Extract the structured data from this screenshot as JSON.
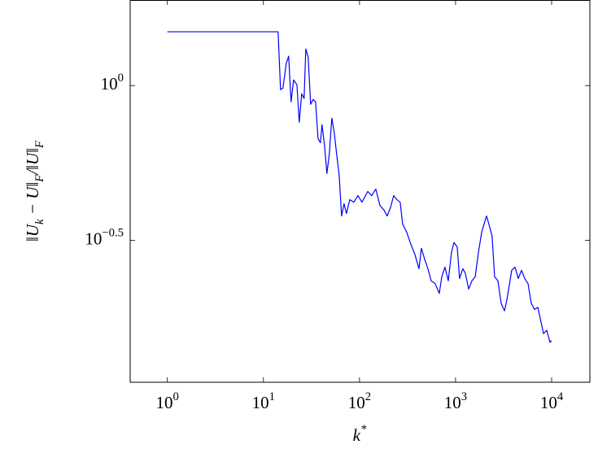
{
  "chart_data": {
    "type": "line",
    "x_label": "k^{*}",
    "y_label": "‖U_{k} − U‖_{F}/‖U‖_{F}",
    "x_scale": "log",
    "y_scale": "log",
    "xlim": [
      0.41,
      25000
    ],
    "ylim": [
      0.11,
      1.89
    ],
    "xticks": [
      {
        "value": 1,
        "label": "10^{0}"
      },
      {
        "value": 10,
        "label": "10^{1}"
      },
      {
        "value": 100,
        "label": "10^{2}"
      },
      {
        "value": 1000,
        "label": "10^{3}"
      },
      {
        "value": 10000,
        "label": "10^{4}"
      }
    ],
    "yticks": [
      {
        "value": 1,
        "label": "10^{0}"
      },
      {
        "value": 0.3162,
        "label": "10^{−0.5}"
      }
    ],
    "x": [
      1,
      14.21,
      15.07,
      15.97,
      17.27,
      18.3,
      19.4,
      20.6,
      22.3,
      23.6,
      25.0,
      26.5,
      27.6,
      29.2,
      31.0,
      32.9,
      34.9,
      37.0,
      39.2,
      40.7,
      43.2,
      45.8,
      48.6,
      51.5,
      54.6,
      57.9,
      61.4,
      65.1,
      69.0,
      73.2,
      79.1,
      87.2,
      96.2,
      106,
      122,
      134,
      148,
      163,
      180,
      194,
      210,
      227,
      245,
      265,
      281,
      310,
      342,
      377,
      416,
      441,
      476,
      515,
      557,
      614,
      677,
      718,
      776,
      839,
      907,
      962,
      1040,
      1100,
      1190,
      1260,
      1370,
      1480,
      1600,
      1730,
      1870,
      1980,
      2100,
      2220,
      2400,
      2550,
      2760,
      2980,
      3230,
      3420,
      3630,
      3840,
      4160,
      4490,
      4860,
      5250,
      5680,
      6140,
      6640,
      7180,
      7760,
      8230,
      8890,
      9620,
      10000
    ],
    "series": [
      {
        "color": "#0000ff",
        "values": [
          1.492,
          1.492,
          0.97,
          0.982,
          1.178,
          1.244,
          0.886,
          1.043,
          1.006,
          0.761,
          0.941,
          0.908,
          1.313,
          1.236,
          0.87,
          0.902,
          0.886,
          0.674,
          0.654,
          0.747,
          0.642,
          0.52,
          0.605,
          0.785,
          0.704,
          0.598,
          0.514,
          0.379,
          0.415,
          0.386,
          0.428,
          0.42,
          0.441,
          0.42,
          0.455,
          0.441,
          0.463,
          0.41,
          0.396,
          0.379,
          0.403,
          0.441,
          0.428,
          0.42,
          0.357,
          0.336,
          0.307,
          0.285,
          0.256,
          0.298,
          0.275,
          0.256,
          0.234,
          0.229,
          0.213,
          0.241,
          0.259,
          0.234,
          0.289,
          0.311,
          0.301,
          0.238,
          0.256,
          0.248,
          0.22,
          0.234,
          0.241,
          0.289,
          0.336,
          0.357,
          0.379,
          0.357,
          0.326,
          0.241,
          0.234,
          0.198,
          0.187,
          0.203,
          0.227,
          0.253,
          0.259,
          0.238,
          0.253,
          0.238,
          0.229,
          0.198,
          0.189,
          0.192,
          0.172,
          0.158,
          0.162,
          0.148,
          0.15
        ]
      }
    ]
  }
}
